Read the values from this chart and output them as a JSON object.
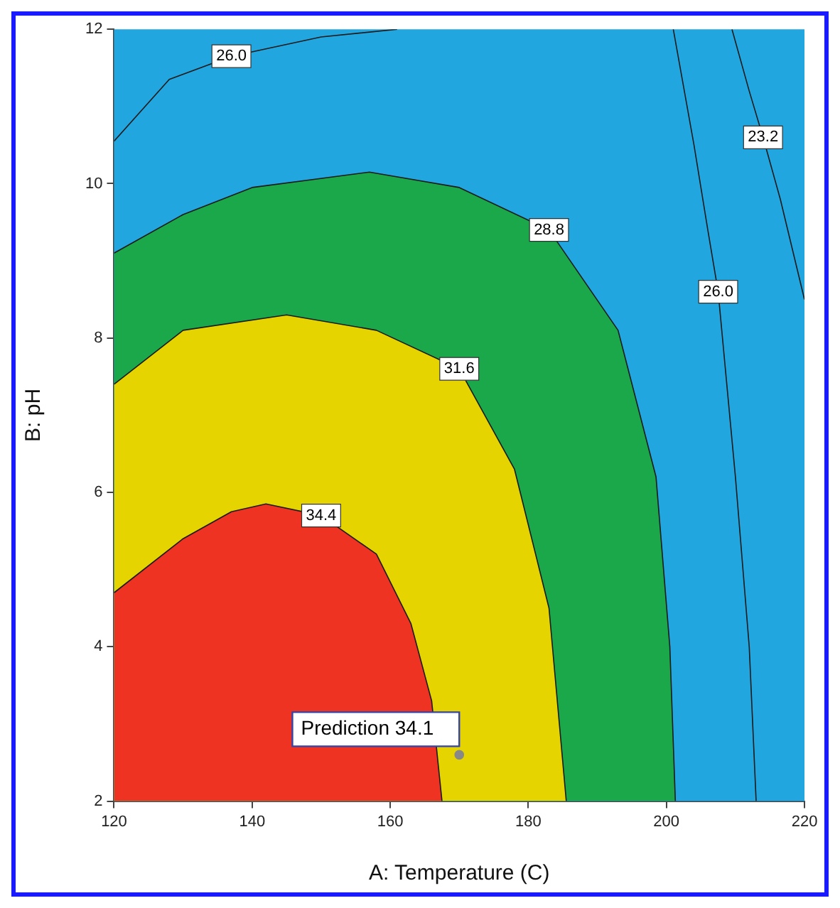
{
  "chart_data": {
    "type": "line",
    "xlabel": "A: Temperature (C)",
    "ylabel": "B: pH",
    "xlim": [
      120,
      220
    ],
    "xticks": [
      120,
      140,
      160,
      180,
      200,
      220
    ],
    "ylim": [
      2,
      12
    ],
    "yticks": [
      2,
      4,
      6,
      8,
      10,
      12
    ],
    "marker": "none",
    "series": [
      {
        "name": "34.4",
        "type": "area",
        "color": "#ee3322",
        "x": [
          120,
          130,
          137,
          142,
          150,
          158,
          163,
          166,
          167.5
        ],
        "values": [
          4.7,
          5.4,
          5.75,
          5.85,
          5.7,
          5.2,
          4.3,
          3.3,
          2
        ]
      },
      {
        "name": "31.6",
        "type": "area",
        "color": "#e6d400",
        "x": [
          120,
          130,
          145,
          158,
          170,
          178,
          183,
          185.5
        ],
        "values": [
          7.4,
          8.1,
          8.3,
          8.1,
          7.6,
          6.3,
          4.5,
          2
        ]
      },
      {
        "name": "28.8",
        "type": "area",
        "color": "#1aa84a",
        "x": [
          120,
          130,
          140,
          157,
          170,
          183,
          193,
          198.5,
          200.5,
          201.3
        ],
        "values": [
          9.1,
          9.6,
          9.95,
          10.15,
          9.95,
          9.4,
          8.1,
          6.2,
          4,
          2
        ]
      },
      {
        "name": "26.0",
        "type": "line",
        "color": "#1a1a1a",
        "x": [
          120,
          128,
          137,
          150,
          161
        ],
        "values": [
          10.55,
          11.35,
          11.65,
          11.9,
          12
        ]
      },
      {
        "name": "26.0",
        "type": "line",
        "color": "#1a1a1a",
        "x": [
          201,
          204,
          206,
          207.5,
          210,
          212,
          213
        ],
        "values": [
          12,
          10.5,
          9.4,
          8.6,
          6.2,
          4,
          2
        ]
      },
      {
        "name": "23.2",
        "type": "line",
        "color": "#1a1a1a",
        "x": [
          209.5,
          212,
          214,
          216.5,
          220
        ],
        "values": [
          12,
          11.2,
          10.6,
          9.8,
          8.5
        ]
      },
      {
        "type": "scatter",
        "marker": "circle",
        "color": "#888888",
        "x": [
          170
        ],
        "values": [
          2.6
        ]
      }
    ],
    "bands": [
      {
        "axis": "y",
        "from": 2,
        "to": 12,
        "color": "#22a6e0"
      }
    ],
    "annotations": [
      {
        "text": "Prediction 34.1",
        "x": 170,
        "y": 2.6
      }
    ]
  }
}
